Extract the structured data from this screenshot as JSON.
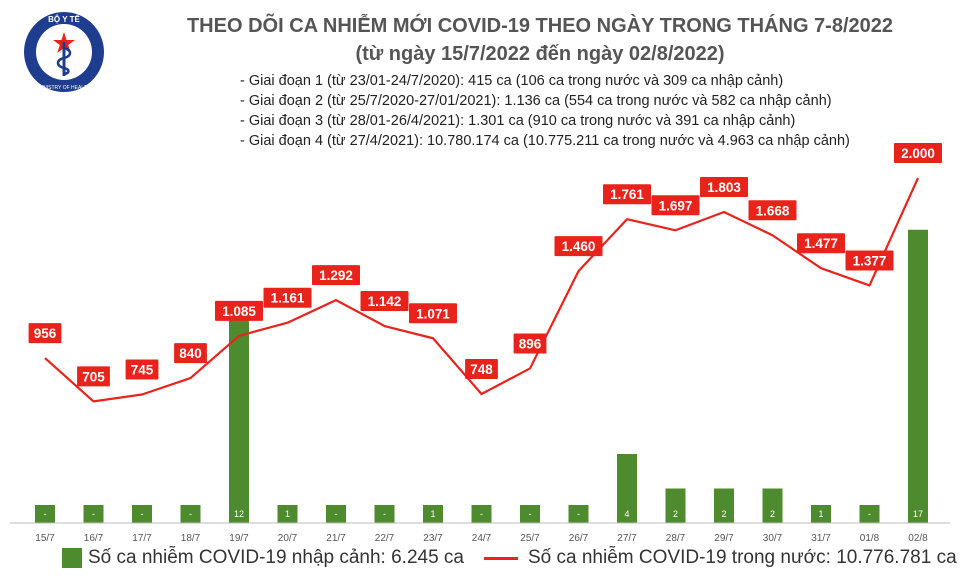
{
  "header": {
    "title": "THEO DÕI CA NHIỄM MỚI COVID-19 THEO NGÀY TRONG THÁNG 7-8/2022",
    "subtitle": "(từ ngày 15/7/2022 đến ngày 02/8/2022)",
    "logo": {
      "text_top": "BỘ Y TẾ",
      "text_bottom": "MINISTRY OF HEALTH",
      "icon": "ministry-of-health-emblem-icon"
    }
  },
  "notes": [
    "- Giai đoạn 1 (từ 23/01-24/7/2020): 415 ca (106 ca trong nước và 309 ca nhập cảnh)",
    "- Giai đoạn 2 (từ 25/7/2020-27/01/2021): 1.136 ca (554 ca trong nước và 582 ca nhập cảnh)",
    "- Giai đoạn 3 (từ 28/01-26/4/2021): 1.301 ca (910 ca trong nước và 391 ca nhập cảnh)",
    "- Giai đoạn 4 (từ 27/4/2021): 10.780.174 ca (10.775.211 ca trong nước và 4.963 ca nhập cảnh)"
  ],
  "colors": {
    "bar": "#4e8a2e",
    "line": "#e8231b",
    "label_bg": "#e8231b",
    "label_text": "#ffffff",
    "title": "#555555"
  },
  "chart_data": {
    "type": "bar",
    "categories": [
      "15/7",
      "16/7",
      "17/7",
      "18/7",
      "19/7",
      "20/7",
      "21/7",
      "22/7",
      "23/7",
      "24/7",
      "25/7",
      "26/7",
      "27/7",
      "28/7",
      "29/7",
      "30/7",
      "31/7",
      "01/8",
      "02/8"
    ],
    "series": [
      {
        "name": "Số ca nhiễm COVID-19 nhập cảnh: 6.245 ca",
        "type": "bar",
        "axis": "right",
        "values": [
          0,
          0,
          0,
          0,
          12,
          1,
          0,
          0,
          1,
          0,
          0,
          0,
          4,
          2,
          2,
          2,
          1,
          0,
          17
        ],
        "labels": [
          "-",
          "-",
          "-",
          "-",
          "12",
          "1",
          "-",
          "-",
          "1",
          "-",
          "-",
          "-",
          "4",
          "2",
          "2",
          "2",
          "1",
          "-",
          "17"
        ]
      },
      {
        "name": "Số ca nhiễm COVID-19 trong nước: 10.776.781 ca",
        "type": "line",
        "axis": "left",
        "values": [
          956,
          705,
          745,
          840,
          1085,
          1161,
          1292,
          1142,
          1071,
          748,
          896,
          1460,
          1761,
          1697,
          1803,
          1668,
          1477,
          1377,
          2000
        ],
        "labels": [
          "956",
          "705",
          "745",
          "840",
          "1.085",
          "1.161",
          "1.292",
          "1.142",
          "1.071",
          "748",
          "896",
          "1.460",
          "1.761",
          "1.697",
          "1.803",
          "1.668",
          "1.477",
          "1.377",
          "2.000"
        ]
      }
    ],
    "ylim_left": [
      0,
      2000
    ],
    "ylim_right": [
      0,
      20
    ]
  }
}
